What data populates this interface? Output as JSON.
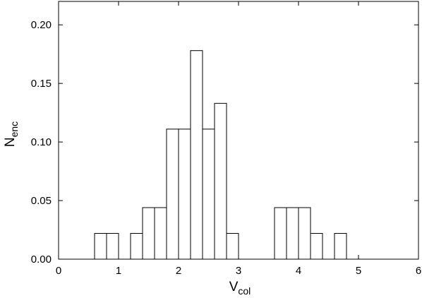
{
  "chart_data": {
    "type": "histogram",
    "x_label": "V",
    "x_label_sub": "col",
    "y_label": "N",
    "y_label_sub": "enc",
    "bins": [
      0.6,
      0.8,
      1.0,
      1.2,
      1.4,
      1.6,
      1.8,
      2.0,
      2.2,
      2.4,
      2.6,
      2.8,
      3.0,
      3.2,
      3.4,
      3.6,
      3.8,
      4.0,
      4.2,
      4.4,
      4.6,
      4.8
    ],
    "values": [
      0.022,
      0.022,
      0,
      0.022,
      0.044,
      0.044,
      0.111,
      0.111,
      0.178,
      0.111,
      0.133,
      0.022,
      0,
      0,
      0,
      0.044,
      0.044,
      0.044,
      0.022,
      0,
      0.022
    ],
    "color": "#ffffff",
    "xlim": [
      0,
      6
    ],
    "xticks": [
      0,
      1,
      2,
      3,
      4,
      5,
      6
    ],
    "ylim": [
      0,
      0.22
    ],
    "yticks": [
      {
        "value": 0,
        "label": "0.00"
      },
      {
        "value": 0.05,
        "label": "0.05"
      },
      {
        "value": 0.1,
        "label": "0.10"
      },
      {
        "value": 0.15,
        "label": "0.15"
      },
      {
        "value": 0.2,
        "label": "0.20"
      }
    ],
    "grid": false
  }
}
